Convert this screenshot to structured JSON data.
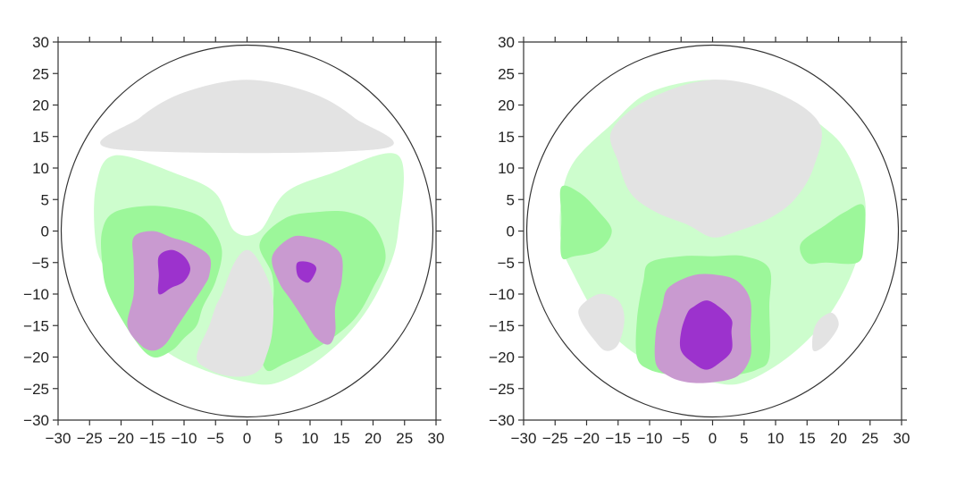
{
  "chart_data": [
    {
      "type": "heatmap",
      "xlim": [
        -30,
        30
      ],
      "ylim": [
        -30,
        30
      ],
      "xticks": [
        "−30",
        "−25",
        "−20",
        "−15",
        "−10",
        "−5",
        "0",
        "5",
        "10",
        "15",
        "20",
        "25",
        "30"
      ],
      "yticks": [
        "30",
        "25",
        "20",
        "15",
        "10",
        "5",
        "0",
        "−5",
        "−10",
        "−15",
        "−20",
        "−25",
        "−30"
      ],
      "grid": false,
      "outline_radius": 29.5,
      "levels": [
        {
          "level": 0,
          "color": "#e3e3e3"
        },
        {
          "level": 1,
          "color": "#cdfdcd"
        },
        {
          "level": 2,
          "color": "#9cf79a"
        },
        {
          "level": 3,
          "color": "#c99ad0"
        },
        {
          "level": 4,
          "color": "#9c32cd"
        }
      ],
      "regions": [
        {
          "level": 0,
          "points": [
            [
              -21,
              13
            ],
            [
              -17,
              18
            ],
            [
              -10,
              22
            ],
            [
              0,
              24
            ],
            [
              10,
              22
            ],
            [
              17,
              18
            ],
            [
              21,
              13
            ],
            [
              -21,
              13
            ]
          ]
        },
        {
          "level": 1,
          "points": [
            [
              -21,
              12
            ],
            [
              -11,
              9
            ],
            [
              -5,
              6
            ],
            [
              -2,
              0
            ],
            [
              2,
              0
            ],
            [
              6,
              6
            ],
            [
              13,
              9
            ],
            [
              24,
              12
            ],
            [
              24,
              0
            ],
            [
              22,
              -7
            ],
            [
              18,
              -14
            ],
            [
              12,
              -20
            ],
            [
              5,
              -24
            ],
            [
              0,
              -24
            ],
            [
              -7,
              -22
            ],
            [
              -13,
              -19
            ],
            [
              -18,
              -14
            ],
            [
              -22,
              -7
            ],
            [
              -24,
              -2
            ],
            [
              -24,
              7
            ],
            [
              -21,
              12
            ]
          ]
        },
        {
          "level": 2,
          "points": [
            [
              -23,
              0
            ],
            [
              -21,
              3
            ],
            [
              -15,
              4
            ],
            [
              -9,
              3
            ],
            [
              -6,
              1
            ],
            [
              -4,
              -3
            ],
            [
              -5,
              -8
            ],
            [
              -7,
              -12
            ],
            [
              -8,
              -15
            ],
            [
              -10,
              -17
            ],
            [
              -12,
              -19
            ],
            [
              -15,
              -20
            ],
            [
              -18,
              -17
            ],
            [
              -22,
              -10
            ],
            [
              -23,
              -5
            ],
            [
              -23,
              0
            ]
          ]
        },
        {
          "level": 2,
          "points": [
            [
              2,
              -2
            ],
            [
              6,
              2
            ],
            [
              11,
              3
            ],
            [
              16,
              3
            ],
            [
              20,
              1
            ],
            [
              22,
              -4
            ],
            [
              20,
              -9
            ],
            [
              17,
              -14
            ],
            [
              12,
              -18
            ],
            [
              6,
              -21
            ],
            [
              3,
              -22
            ],
            [
              2,
              -17
            ],
            [
              4,
              -12
            ],
            [
              4,
              -7
            ],
            [
              2,
              -2
            ]
          ]
        },
        {
          "level": 3,
          "points": [
            [
              -18,
              -1
            ],
            [
              -15,
              0
            ],
            [
              -12,
              -1
            ],
            [
              -9,
              -2
            ],
            [
              -6,
              -4
            ],
            [
              -6,
              -7
            ],
            [
              -7,
              -9
            ],
            [
              -9,
              -12
            ],
            [
              -11,
              -15
            ],
            [
              -13,
              -18
            ],
            [
              -15,
              -19
            ],
            [
              -17,
              -18
            ],
            [
              -19,
              -15
            ],
            [
              -18,
              -10
            ],
            [
              -18,
              -5
            ],
            [
              -18,
              -1
            ]
          ]
        },
        {
          "level": 3,
          "points": [
            [
              4,
              -4
            ],
            [
              7,
              -1
            ],
            [
              10,
              -1
            ],
            [
              13,
              -2
            ],
            [
              15,
              -4
            ],
            [
              15,
              -8
            ],
            [
              14,
              -12
            ],
            [
              14,
              -16
            ],
            [
              13,
              -18
            ],
            [
              11,
              -17
            ],
            [
              9,
              -14
            ],
            [
              7,
              -11
            ],
            [
              5,
              -8
            ],
            [
              4,
              -4
            ]
          ]
        },
        {
          "level": 4,
          "points": [
            [
              -14,
              -4
            ],
            [
              -12,
              -3
            ],
            [
              -10,
              -4
            ],
            [
              -9,
              -6
            ],
            [
              -10,
              -8
            ],
            [
              -12,
              -9
            ],
            [
              -14,
              -10
            ],
            [
              -14,
              -7
            ],
            [
              -14,
              -4
            ]
          ]
        },
        {
          "level": 4,
          "points": [
            [
              8,
              -5
            ],
            [
              10,
              -5
            ],
            [
              11,
              -6
            ],
            [
              10,
              -8
            ],
            [
              9,
              -8
            ],
            [
              8,
              -7
            ],
            [
              8,
              -5
            ]
          ]
        },
        {
          "level": 0,
          "points": [
            [
              -4,
              -10
            ],
            [
              -2,
              -5
            ],
            [
              0,
              -3
            ],
            [
              2,
              -5
            ],
            [
              4,
              -10
            ],
            [
              4,
              -16
            ],
            [
              3,
              -20
            ],
            [
              2,
              -22
            ],
            [
              0,
              -23
            ],
            [
              -3,
              -23
            ],
            [
              -6,
              -22
            ],
            [
              -8,
              -20
            ],
            [
              -6,
              -15
            ],
            [
              -5,
              -12
            ],
            [
              -4,
              -10
            ]
          ]
        }
      ]
    },
    {
      "type": "heatmap",
      "xlim": [
        -30,
        30
      ],
      "ylim": [
        -30,
        30
      ],
      "xticks": [
        "−30",
        "−25",
        "−20",
        "−15",
        "−10",
        "−5",
        "0",
        "5",
        "10",
        "15",
        "20",
        "25",
        "30"
      ],
      "yticks": [
        "30",
        "25",
        "20",
        "15",
        "10",
        "5",
        "0",
        "−5",
        "−10",
        "−15",
        "−20",
        "−25",
        "−30"
      ],
      "grid": false,
      "outline_radius": 29.5,
      "levels": [
        {
          "level": 0,
          "color": "#e3e3e3"
        },
        {
          "level": 1,
          "color": "#cdfdcd"
        },
        {
          "level": 2,
          "color": "#9cf79a"
        },
        {
          "level": 3,
          "color": "#c99ad0"
        },
        {
          "level": 4,
          "color": "#9c32cd"
        }
      ],
      "regions": [
        {
          "level": 1,
          "points": [
            [
              -16,
              17
            ],
            [
              -10,
              22
            ],
            [
              0,
              24
            ],
            [
              10,
              22
            ],
            [
              17,
              17
            ],
            [
              21,
              13
            ],
            [
              24,
              6
            ],
            [
              24,
              0
            ],
            [
              22,
              -7
            ],
            [
              18,
              -14
            ],
            [
              12,
              -20
            ],
            [
              5,
              -24
            ],
            [
              0,
              -24
            ],
            [
              -7,
              -22
            ],
            [
              -13,
              -19
            ],
            [
              -18,
              -14
            ],
            [
              -22,
              -7
            ],
            [
              -24,
              -2
            ],
            [
              -24,
              5
            ],
            [
              -22,
              11
            ],
            [
              -16,
              17
            ]
          ]
        },
        {
          "level": 0,
          "points": [
            [
              -16,
              16
            ],
            [
              -10,
              21
            ],
            [
              0,
              24
            ],
            [
              10,
              22
            ],
            [
              17,
              17
            ],
            [
              16,
              10
            ],
            [
              13,
              5
            ],
            [
              9,
              2
            ],
            [
              4,
              0
            ],
            [
              0,
              -1
            ],
            [
              -4,
              1
            ],
            [
              -9,
              3
            ],
            [
              -13,
              6
            ],
            [
              -15,
              11
            ],
            [
              -16,
              16
            ]
          ]
        },
        {
          "level": 2,
          "points": [
            [
              -24,
              7
            ],
            [
              -21,
              6
            ],
            [
              -18,
              3
            ],
            [
              -16,
              0
            ],
            [
              -18,
              -3
            ],
            [
              -22,
              -4
            ],
            [
              -24,
              -4
            ],
            [
              -24,
              2
            ],
            [
              -24,
              7
            ]
          ]
        },
        {
          "level": 2,
          "points": [
            [
              24,
              4
            ],
            [
              21,
              3
            ],
            [
              18,
              1
            ],
            [
              14,
              -2
            ],
            [
              15,
              -5
            ],
            [
              18,
              -5
            ],
            [
              23,
              -5
            ],
            [
              24,
              -2
            ],
            [
              24,
              4
            ]
          ]
        },
        {
          "level": 0,
          "points": [
            [
              -21,
              -12
            ],
            [
              -18,
              -10
            ],
            [
              -15,
              -11
            ],
            [
              -14,
              -14
            ],
            [
              -15,
              -18
            ],
            [
              -17,
              -19
            ],
            [
              -19,
              -17
            ],
            [
              -21,
              -14
            ],
            [
              -21,
              -12
            ]
          ]
        },
        {
          "level": 0,
          "points": [
            [
              19,
              -13
            ],
            [
              17,
              -14
            ],
            [
              16,
              -16
            ],
            [
              16,
              -19
            ],
            [
              18,
              -18
            ],
            [
              20,
              -15
            ],
            [
              19,
              -13
            ]
          ]
        },
        {
          "level": 2,
          "points": [
            [
              -10,
              -5
            ],
            [
              -5,
              -4
            ],
            [
              0,
              -4
            ],
            [
              5,
              -4
            ],
            [
              9,
              -6
            ],
            [
              9,
              -12
            ],
            [
              9,
              -20
            ],
            [
              7,
              -22
            ],
            [
              3,
              -23
            ],
            [
              -2,
              -24
            ],
            [
              -6,
              -23
            ],
            [
              -10,
              -22
            ],
            [
              -12,
              -20
            ],
            [
              -12,
              -14
            ],
            [
              -11,
              -8
            ],
            [
              -10,
              -5
            ]
          ]
        },
        {
          "level": 3,
          "points": [
            [
              -7,
              -9
            ],
            [
              -3,
              -7
            ],
            [
              1,
              -7
            ],
            [
              4,
              -8
            ],
            [
              6,
              -11
            ],
            [
              6,
              -16
            ],
            [
              6,
              -20
            ],
            [
              4,
              -23
            ],
            [
              0,
              -24
            ],
            [
              -4,
              -24
            ],
            [
              -7,
              -23
            ],
            [
              -9,
              -21
            ],
            [
              -9,
              -16
            ],
            [
              -8,
              -12
            ],
            [
              -7,
              -9
            ]
          ]
        },
        {
          "level": 4,
          "points": [
            [
              -3,
              -12
            ],
            [
              -1,
              -11
            ],
            [
              1,
              -12
            ],
            [
              3,
              -14
            ],
            [
              3,
              -16
            ],
            [
              3,
              -19
            ],
            [
              1,
              -21
            ],
            [
              -1,
              -22
            ],
            [
              -3,
              -21
            ],
            [
              -5,
              -19
            ],
            [
              -5,
              -16
            ],
            [
              -4,
              -13
            ],
            [
              -3,
              -12
            ]
          ]
        }
      ]
    }
  ]
}
